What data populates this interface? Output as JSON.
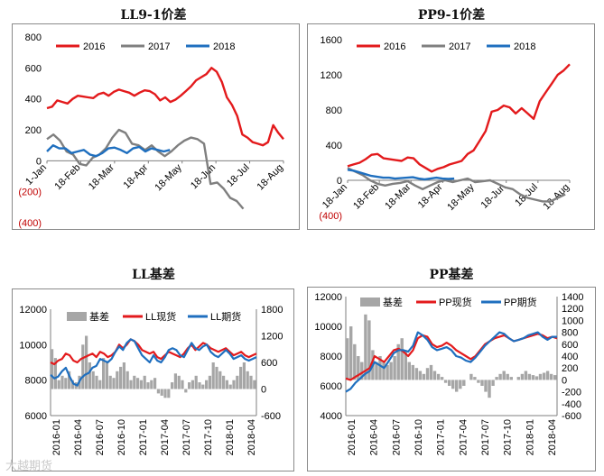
{
  "watermark": "大越期货",
  "chart_data": [
    {
      "type": "line",
      "title": "LL9-1价差",
      "ylim": [
        -400,
        800
      ],
      "y_ticks": [
        "800",
        "600",
        "400",
        "200",
        "0",
        "(200)",
        "(400)"
      ],
      "y_tick_values": [
        800,
        600,
        400,
        200,
        0,
        -200,
        -400
      ],
      "x_tick_labels": [
        "1-Jan",
        "18-Feb",
        "18-Mar",
        "18-Apr",
        "18-May",
        "18-Jun",
        "18-Jul",
        "18-Aug"
      ],
      "series": [
        {
          "name": "2016",
          "color": "#e31a1c",
          "values": [
            340,
            350,
            390,
            380,
            370,
            400,
            420,
            415,
            410,
            405,
            430,
            440,
            420,
            445,
            460,
            450,
            440,
            420,
            440,
            455,
            450,
            430,
            390,
            410,
            380,
            395,
            420,
            450,
            480,
            520,
            540,
            560,
            600,
            575,
            510,
            410,
            360,
            290,
            170,
            150,
            120,
            110,
            100,
            120,
            230,
            180,
            140
          ]
        },
        {
          "name": "2017",
          "color": "#7f7f7f",
          "values": [
            140,
            170,
            130,
            60,
            40,
            -20,
            -30,
            20,
            40,
            80,
            150,
            200,
            180,
            110,
            100,
            70,
            100,
            60,
            30,
            60,
            100,
            130,
            150,
            140,
            110,
            -150,
            -140,
            -180,
            -240,
            -260,
            -310
          ]
        },
        {
          "name": "2018",
          "color": "#1f6fbf",
          "values": [
            60,
            100,
            80,
            80,
            50,
            60,
            70,
            40,
            30,
            50,
            80,
            85,
            70,
            50,
            80,
            90,
            60,
            80,
            70,
            60,
            70
          ]
        }
      ]
    },
    {
      "type": "line",
      "title": "PP9-1价差",
      "ylim": [
        -400,
        1600
      ],
      "y_ticks": [
        "1600",
        "1200",
        "800",
        "400",
        "0",
        "(400)"
      ],
      "y_tick_values": [
        1600,
        1200,
        800,
        400,
        0,
        -400
      ],
      "x_tick_labels": [
        "18-Jan",
        "18-Feb",
        "18-Mar",
        "18-Apr",
        "18-May",
        "18-Jun",
        "18-Jul",
        "18-Aug"
      ],
      "series": [
        {
          "name": "2016",
          "color": "#e31a1c",
          "values": [
            160,
            180,
            200,
            240,
            290,
            300,
            250,
            240,
            230,
            220,
            260,
            250,
            180,
            140,
            100,
            130,
            150,
            180,
            200,
            220,
            300,
            340,
            450,
            560,
            780,
            800,
            850,
            830,
            760,
            820,
            760,
            700,
            900,
            1000,
            1100,
            1200,
            1250,
            1320
          ]
        },
        {
          "name": "2017",
          "color": "#7f7f7f",
          "values": [
            140,
            100,
            60,
            0,
            -40,
            -60,
            -40,
            -30,
            -10,
            -60,
            -100,
            -60,
            -20,
            0,
            -20,
            0,
            20,
            -20,
            -10,
            0,
            -40,
            -80,
            -100,
            -160,
            -200,
            -220,
            -240,
            -240,
            -200,
            -160
          ]
        },
        {
          "name": "2018",
          "color": "#1f6fbf",
          "values": [
            120,
            110,
            90,
            70,
            50,
            40,
            30,
            30,
            20,
            25,
            30,
            35,
            20,
            10,
            20,
            30,
            20,
            15,
            20
          ]
        }
      ]
    },
    {
      "type": "combo",
      "title": "LL基差",
      "ylim_left": [
        6000,
        12000
      ],
      "ylim_right": [
        -600,
        1800
      ],
      "y_ticks_left": [
        "12000",
        "10000",
        "8000",
        "6000"
      ],
      "y_tick_values_left": [
        12000,
        10000,
        8000,
        6000
      ],
      "y_ticks_right": [
        "1800",
        "1200",
        "600",
        "0",
        "-600"
      ],
      "y_tick_values_right": [
        1800,
        1200,
        600,
        0,
        -600
      ],
      "x_tick_labels": [
        "2016-01",
        "2016-04",
        "2016-07",
        "2016-10",
        "2017-01",
        "2017-04",
        "2017-07",
        "2017-10",
        "2018-01",
        "2018-04"
      ],
      "series": [
        {
          "name": "基差",
          "color": "#a6a6a6",
          "kind": "bar",
          "values": [
            900,
            700,
            200,
            300,
            250,
            400,
            200,
            150,
            300,
            1000,
            1200,
            600,
            400,
            300,
            200,
            700,
            600,
            300,
            250,
            400,
            500,
            600,
            400,
            200,
            300,
            250,
            200,
            300,
            150,
            200,
            250,
            -100,
            -150,
            -200,
            -200,
            150,
            350,
            300,
            200,
            -80,
            150,
            200,
            300,
            150,
            100,
            200,
            300,
            600,
            500,
            400,
            300,
            200,
            100,
            200,
            300,
            500,
            600,
            400,
            300,
            200
          ]
        },
        {
          "name": "LL现货",
          "color": "#e31a1c",
          "kind": "line",
          "values": [
            9000,
            8900,
            9100,
            9200,
            9500,
            9400,
            9100,
            9000,
            9200,
            9300,
            9400,
            9500,
            9300,
            9600,
            9500,
            9300,
            9400,
            9600,
            10000,
            9800,
            10000,
            10300,
            10200,
            10000,
            9700,
            9600,
            9500,
            9600,
            9300,
            9200,
            9400,
            9600,
            9500,
            9400,
            9300,
            9500,
            9800,
            10000,
            9700,
            9900,
            10100,
            10000,
            9800,
            9700,
            9600,
            9700,
            9800,
            9600,
            9400,
            9500,
            9600,
            9400,
            9300,
            9400,
            9500
          ]
        },
        {
          "name": "LL期货",
          "color": "#1f6fbf",
          "kind": "line",
          "values": [
            8300,
            8100,
            8200,
            8500,
            8700,
            8200,
            7800,
            7700,
            8100,
            8300,
            8400,
            8700,
            8800,
            9200,
            9100,
            9000,
            9200,
            9600,
            9900,
            9700,
            10100,
            10300,
            10200,
            9800,
            9400,
            9200,
            9000,
            9400,
            9100,
            9000,
            9300,
            9700,
            9800,
            9700,
            9400,
            9300,
            9700,
            10100,
            9800,
            9700,
            9900,
            10000,
            9600,
            9400,
            9300,
            9500,
            9700,
            9500,
            9200,
            9300,
            9400,
            9200,
            9100,
            9200,
            9300
          ]
        }
      ]
    },
    {
      "type": "combo",
      "title": "PP基差",
      "ylim_left": [
        4000,
        12000
      ],
      "ylim_right": [
        -600,
        1400
      ],
      "y_ticks_left": [
        "12000",
        "10000",
        "8000",
        "6000",
        "4000"
      ],
      "y_tick_values_left": [
        12000,
        10000,
        8000,
        6000,
        4000
      ],
      "y_ticks_right": [
        "1400",
        "1200",
        "1000",
        "800",
        "600",
        "400",
        "200",
        "0",
        "-200",
        "-400",
        "-600"
      ],
      "y_tick_values_right": [
        1400,
        1200,
        1000,
        800,
        600,
        400,
        200,
        0,
        -200,
        -400,
        -600
      ],
      "x_tick_labels": [
        "2016-01",
        "2016-04",
        "2016-07",
        "2016-10",
        "2017-01",
        "2017-04",
        "2017-07",
        "2017-10",
        "2018-01",
        "2018-04"
      ],
      "series": [
        {
          "name": "基差",
          "color": "#a6a6a6",
          "kind": "bar",
          "values": [
            700,
            900,
            600,
            400,
            300,
            1100,
            1000,
            500,
            300,
            400,
            300,
            250,
            300,
            400,
            600,
            700,
            500,
            300,
            250,
            200,
            150,
            100,
            200,
            250,
            150,
            100,
            50,
            -50,
            -100,
            -150,
            -200,
            -150,
            -100,
            0,
            100,
            50,
            -50,
            -100,
            -200,
            -300,
            -100,
            50,
            100,
            150,
            100,
            50,
            0,
            50,
            100,
            150,
            100,
            80,
            60,
            100,
            120,
            150,
            100,
            80
          ]
        },
        {
          "name": "PP现货",
          "color": "#e31a1c",
          "kind": "line",
          "values": [
            6500,
            6400,
            6600,
            6800,
            7000,
            7200,
            8000,
            7800,
            7600,
            8000,
            8400,
            8500,
            8300,
            8000,
            8400,
            9200,
            9400,
            9300,
            8800,
            8600,
            8700,
            8900,
            8700,
            8400,
            8200,
            8000,
            7800,
            8000,
            8400,
            8800,
            9000,
            9200,
            9300,
            9400,
            9200,
            9000,
            9100,
            9200,
            9300,
            9400,
            9500,
            9400,
            9200,
            9300,
            9200
          ]
        },
        {
          "name": "PP期货",
          "color": "#1f6fbf",
          "kind": "line",
          "values": [
            5600,
            5800,
            6200,
            6500,
            6800,
            7000,
            7600,
            7400,
            7200,
            7700,
            8200,
            8400,
            8400,
            8300,
            8700,
            9600,
            9400,
            9100,
            8600,
            8400,
            8500,
            8600,
            8400,
            8000,
            7900,
            7700,
            7600,
            7900,
            8300,
            8700,
            9000,
            9300,
            9600,
            9500,
            9200,
            9000,
            9100,
            9200,
            9400,
            9500,
            9600,
            9300,
            9100,
            9300,
            9300
          ]
        }
      ]
    }
  ]
}
